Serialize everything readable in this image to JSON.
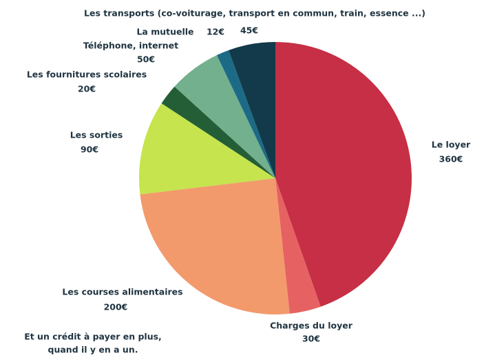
{
  "chart_data": {
    "type": "pie",
    "categories": [
      "Le loyer",
      "Charges du loyer",
      "Les courses alimentaires",
      "Les sorties",
      "Les fournitures scolaires",
      "Téléphone, internet",
      "La mutuelle",
      "Les transports (co-voiturage, transport en commun, train, essence ...)"
    ],
    "values": [
      360,
      30,
      200,
      90,
      20,
      50,
      12,
      45
    ],
    "value_labels": [
      "360€",
      "30€",
      "200€",
      "90€",
      "20€",
      "50€",
      "12€",
      "45€"
    ],
    "colors": [
      "#c62f45",
      "#e66262",
      "#f29a6c",
      "#c5e44e",
      "#245e36",
      "#72b08e",
      "#1d6a86",
      "#123a4a"
    ],
    "annotation": [
      "Et un crédit à payer en plus,",
      "quand il y en a un."
    ]
  }
}
